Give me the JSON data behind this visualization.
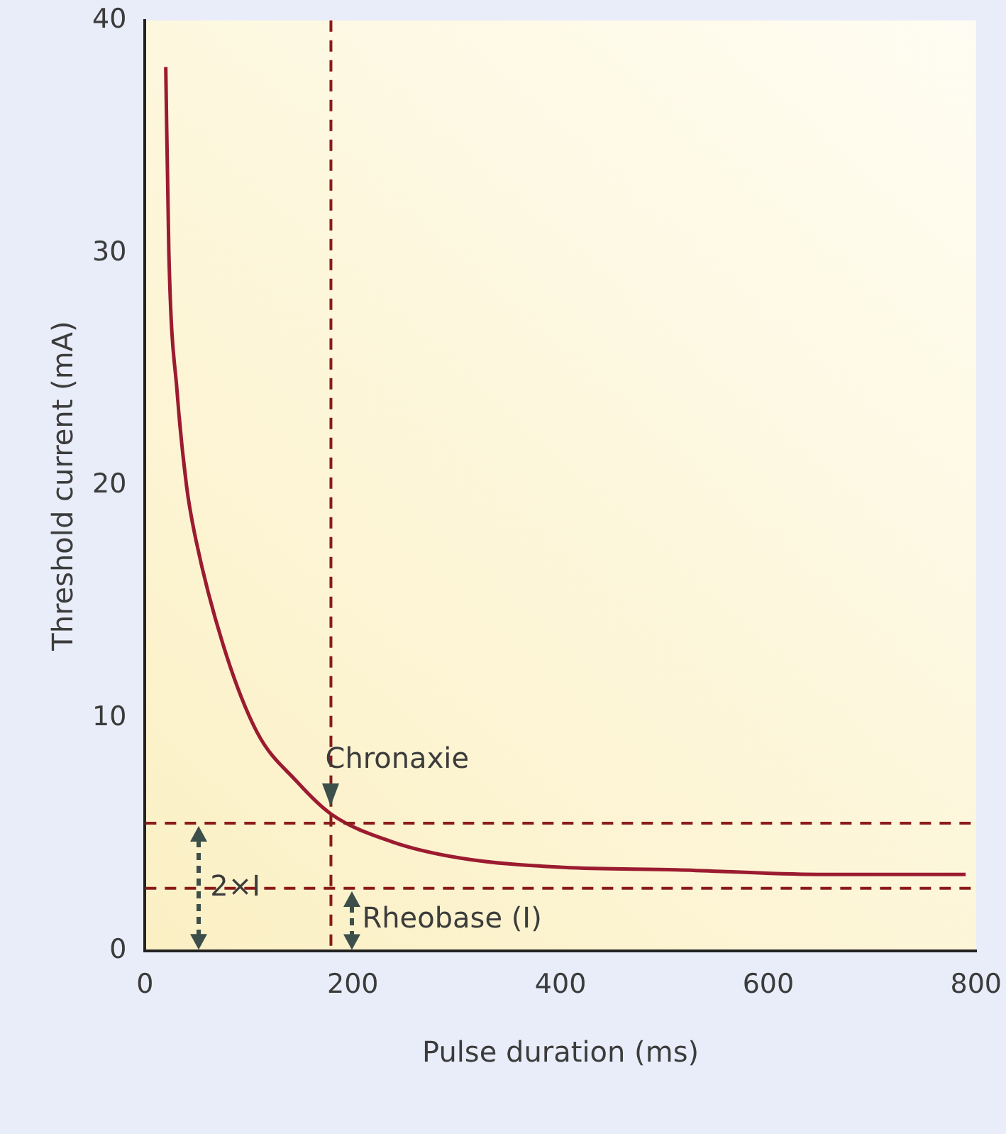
{
  "chart_data": {
    "type": "line",
    "xlabel": "Pulse duration (ms)",
    "ylabel": "Threshold current (mA)",
    "xlim": [
      0,
      800
    ],
    "xticks": [
      0,
      200,
      400,
      600,
      800
    ],
    "ylim": [
      0,
      40
    ],
    "yticks": [
      0,
      10,
      20,
      30,
      40
    ],
    "grid": false,
    "legend": false,
    "marker": "none",
    "line_style": "solid",
    "series": [
      {
        "color": "#9b1b30",
        "x": [
          20,
          23,
          31,
          40,
          48,
          75,
          108,
          146,
          179,
          238,
          304,
          403,
          512,
          648,
          790
        ],
        "values": [
          38,
          30,
          24,
          20,
          17.9,
          13.2,
          9.4,
          7.3,
          5.9,
          4.7,
          4.0,
          3.6,
          3.5,
          3.3,
          3.3
        ]
      }
    ],
    "ref_lines": [
      {
        "axis": "y",
        "value": 5.5,
        "color": "#8b1a1a",
        "line_style": "dashed"
      },
      {
        "axis": "y",
        "value": 2.7,
        "color": "#8b1a1a",
        "line_style": "dashed"
      },
      {
        "axis": "x",
        "value": 179,
        "color": "#8b1a1a",
        "line_style": "dashed"
      }
    ],
    "annotations": [
      "Chronaxie",
      "2×I",
      "Rheobase (I)"
    ]
  }
}
